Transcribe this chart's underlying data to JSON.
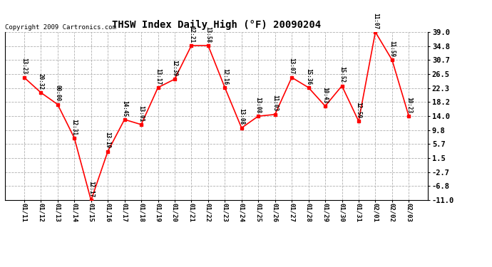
{
  "title": "THSW Index Daily High (°F) 20090204",
  "copyright": "Copyright 2009 Cartronics.com",
  "x_labels": [
    "01/11",
    "01/12",
    "01/13",
    "01/14",
    "01/15",
    "01/16",
    "01/17",
    "01/18",
    "01/19",
    "01/20",
    "01/21",
    "01/22",
    "01/23",
    "01/24",
    "01/25",
    "01/26",
    "01/27",
    "01/28",
    "01/29",
    "01/30",
    "01/31",
    "02/01",
    "02/02",
    "02/03"
  ],
  "y_values": [
    25.5,
    21.0,
    17.5,
    7.5,
    -11.0,
    3.5,
    13.0,
    11.5,
    22.5,
    25.0,
    35.0,
    35.0,
    22.5,
    10.5,
    14.0,
    14.5,
    25.5,
    22.5,
    17.0,
    23.0,
    12.5,
    39.0,
    30.7,
    14.0
  ],
  "time_labels": [
    "13:23",
    "20:32",
    "00:00",
    "12:31",
    "12:17",
    "13:19",
    "14:45",
    "13:01",
    "13:17",
    "12:39",
    "12:21",
    "13:58",
    "12:16",
    "13:08",
    "13:08",
    "11:03",
    "13:07",
    "15:36",
    "10:43",
    "15:52",
    "12:59",
    "11:07",
    "11:59",
    "10:23"
  ],
  "y_ticks": [
    39.0,
    34.8,
    30.7,
    26.5,
    22.3,
    18.2,
    14.0,
    9.8,
    5.7,
    1.5,
    -2.7,
    -6.8,
    -11.0
  ],
  "ylim": [
    -11.0,
    39.0
  ],
  "line_color": "#ff0000",
  "marker_color": "#ff0000",
  "bg_color": "#ffffff",
  "grid_color": "#b0b0b0",
  "title_fontsize": 10,
  "label_fontsize": 6.5,
  "ytick_fontsize": 7.5,
  "xtick_fontsize": 6.5,
  "annot_fontsize": 5.5,
  "copyright_fontsize": 6.5
}
